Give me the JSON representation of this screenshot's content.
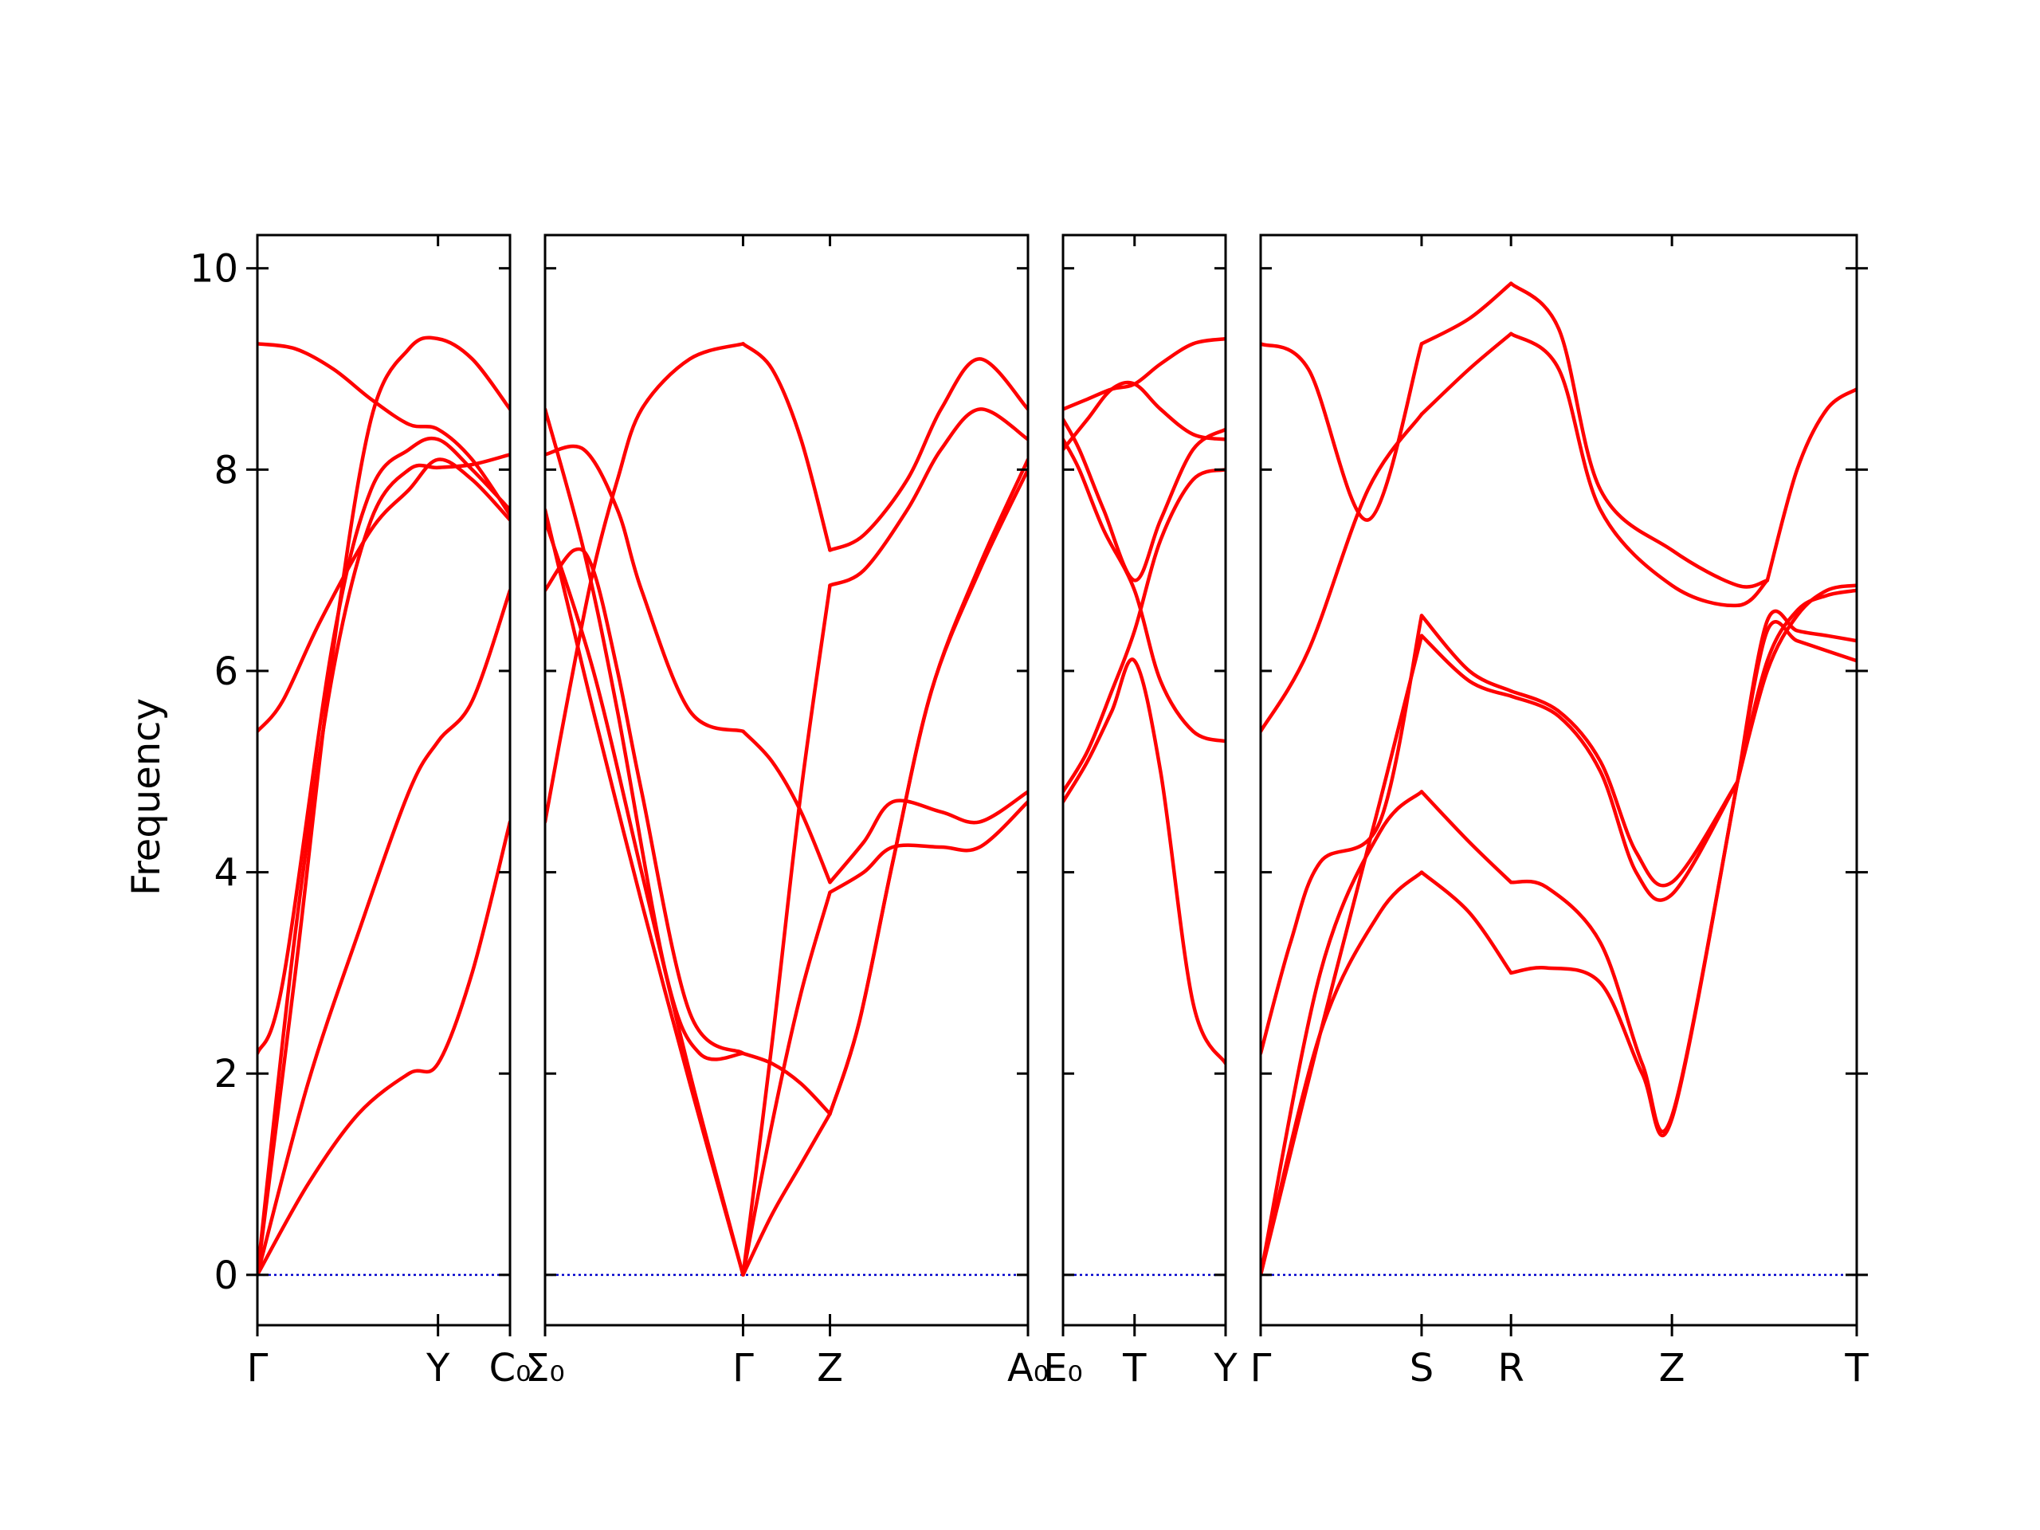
{
  "chart_data": {
    "type": "line",
    "title": "",
    "ylabel": "Frequency",
    "xlabel": "",
    "ylim": [
      -0.5,
      10.33
    ],
    "yticks": [
      0,
      2,
      4,
      6,
      8,
      10
    ],
    "grid": false,
    "legend": "none",
    "colors": {
      "bands": "#ff0000",
      "zero_line": "#0000cc",
      "axes": "#000000"
    },
    "panels": [
      {
        "id": "p1",
        "xlim": [
          0,
          1
        ],
        "ticks": [
          {
            "pos": 0,
            "label": "Γ"
          },
          {
            "pos": 0.715,
            "label": "Y"
          },
          {
            "pos": 1,
            "label": "C₀"
          }
        ],
        "bands": [
          {
            "x": [
              0,
              0.2,
              0.4,
              0.6,
              0.715,
              0.85,
              1
            ],
            "y": [
              0,
              0.9,
              1.6,
              2.0,
              2.1,
              3.0,
              4.5
            ]
          },
          {
            "x": [
              0,
              0.2,
              0.4,
              0.6,
              0.715,
              0.85,
              1
            ],
            "y": [
              0,
              1.9,
              3.4,
              4.8,
              5.3,
              5.7,
              6.8
            ]
          },
          {
            "x": [
              0,
              0.15,
              0.3,
              0.45,
              0.6,
              0.715,
              0.85,
              1
            ],
            "y": [
              0,
              3.4,
              6.0,
              7.5,
              8.0,
              8.02,
              8.05,
              8.15
            ]
          },
          {
            "x": [
              0,
              0.1,
              0.3,
              0.45,
              0.6,
              0.715,
              0.85,
              1
            ],
            "y": [
              2.2,
              2.9,
              6.3,
              7.8,
              8.2,
              8.3,
              8.0,
              7.6
            ]
          },
          {
            "x": [
              0,
              0.15,
              0.3,
              0.45,
              0.6,
              0.715,
              0.85,
              1
            ],
            "y": [
              0,
              3.0,
              6.2,
              8.5,
              9.2,
              9.3,
              9.1,
              8.6
            ]
          },
          {
            "x": [
              0,
              0.1,
              0.25,
              0.45,
              0.6,
              0.715,
              0.85,
              1
            ],
            "y": [
              5.4,
              5.7,
              6.5,
              7.4,
              7.8,
              8.1,
              7.9,
              7.5
            ]
          },
          {
            "x": [
              0,
              0.15,
              0.3,
              0.45,
              0.6,
              0.715,
              0.85,
              1
            ],
            "y": [
              9.25,
              9.2,
              9.0,
              8.7,
              8.45,
              8.4,
              8.1,
              7.55
            ]
          }
        ]
      },
      {
        "id": "p2",
        "xlim": [
          0,
          1
        ],
        "ticks": [
          {
            "pos": 0,
            "label": "Σ₀"
          },
          {
            "pos": 0.41,
            "label": "Γ"
          },
          {
            "pos": 0.59,
            "label": "Z"
          },
          {
            "pos": 1,
            "label": "A₀"
          }
        ],
        "bands": [
          {
            "x": [
              0,
              0.05,
              0.1,
              0.2,
              0.3,
              0.41
            ],
            "y": [
              7.6,
              6.6,
              5.6,
              3.7,
              1.9,
              0
            ]
          },
          {
            "x": [
              0,
              0.1,
              0.2,
              0.3,
              0.41
            ],
            "y": [
              7.5,
              6.0,
              4.0,
              2.0,
              0
            ]
          },
          {
            "x": [
              0,
              0.05,
              0.1,
              0.15,
              0.2,
              0.3,
              0.41
            ],
            "y": [
              4.5,
              5.8,
              7.0,
              7.9,
              8.6,
              9.1,
              9.25
            ]
          },
          {
            "x": [
              0,
              0.08,
              0.15,
              0.25,
              0.32,
              0.41
            ],
            "y": [
              8.6,
              7.2,
              5.6,
              3.0,
              2.2,
              2.2
            ]
          },
          {
            "x": [
              0,
              0.08,
              0.15,
              0.2,
              0.3,
              0.41
            ],
            "y": [
              8.15,
              8.2,
              7.6,
              6.8,
              5.6,
              5.4
            ]
          },
          {
            "x": [
              0,
              0.06,
              0.1,
              0.15,
              0.2,
              0.3,
              0.41
            ],
            "y": [
              6.8,
              7.2,
              7.0,
              6.0,
              4.8,
              2.6,
              2.2
            ]
          },
          {
            "x": [
              0.41,
              0.47,
              0.53,
              0.59
            ],
            "y": [
              9.25,
              9.0,
              8.3,
              7.2
            ]
          },
          {
            "x": [
              0.41,
              0.47,
              0.53,
              0.59
            ],
            "y": [
              0,
              2.3,
              4.8,
              6.85
            ]
          },
          {
            "x": [
              0.41,
              0.47,
              0.53,
              0.59
            ],
            "y": [
              0,
              1.5,
              2.8,
              3.8
            ]
          },
          {
            "x": [
              0.41,
              0.47,
              0.53,
              0.59
            ],
            "y": [
              0,
              0.6,
              1.1,
              1.6
            ]
          },
          {
            "x": [
              0.41,
              0.47,
              0.53,
              0.59
            ],
            "y": [
              2.2,
              2.1,
              1.9,
              1.6
            ]
          },
          {
            "x": [
              0.41,
              0.47,
              0.53,
              0.59
            ],
            "y": [
              5.4,
              5.1,
              4.6,
              3.9
            ]
          },
          {
            "x": [
              0.59,
              0.66,
              0.75,
              0.82,
              0.9,
              1
            ],
            "y": [
              7.2,
              7.35,
              7.9,
              8.6,
              9.1,
              8.6
            ]
          },
          {
            "x": [
              0.59,
              0.66,
              0.75,
              0.82,
              0.9,
              1
            ],
            "y": [
              6.85,
              7.0,
              7.6,
              8.2,
              8.6,
              8.3
            ]
          },
          {
            "x": [
              0.59,
              0.66,
              0.72,
              0.82,
              0.9,
              1
            ],
            "y": [
              3.9,
              4.3,
              4.7,
              4.6,
              4.5,
              4.8
            ]
          },
          {
            "x": [
              0.59,
              0.66,
              0.72,
              0.82,
              0.9,
              1
            ],
            "y": [
              3.8,
              4.0,
              4.25,
              4.25,
              4.25,
              4.7
            ]
          },
          {
            "x": [
              0.59,
              0.65,
              0.72,
              0.8,
              0.9,
              1
            ],
            "y": [
              1.6,
              2.5,
              4.1,
              5.8,
              7.0,
              8.0
            ]
          },
          {
            "x": [
              0.59,
              0.65,
              0.72,
              0.8,
              0.9,
              1
            ],
            "y": [
              1.6,
              2.5,
              4.1,
              5.8,
              7.05,
              8.1
            ]
          }
        ]
      },
      {
        "id": "p3",
        "xlim": [
          0,
          1
        ],
        "ticks": [
          {
            "pos": 0,
            "label": "E₀"
          },
          {
            "pos": 0.44,
            "label": "T"
          },
          {
            "pos": 1,
            "label": "Y"
          }
        ],
        "bands": [
          {
            "x": [
              0,
              0.15,
              0.3,
              0.44,
              0.6,
              0.8,
              1
            ],
            "y": [
              8.6,
              8.7,
              8.8,
              8.85,
              9.05,
              9.25,
              9.3
            ]
          },
          {
            "x": [
              0,
              0.15,
              0.3,
              0.44,
              0.6,
              0.8,
              1
            ],
            "y": [
              8.2,
              8.5,
              8.8,
              8.85,
              8.6,
              8.35,
              8.3
            ]
          },
          {
            "x": [
              0,
              0.1,
              0.25,
              0.44,
              0.6,
              0.8,
              1
            ],
            "y": [
              8.3,
              8.0,
              7.4,
              6.8,
              5.9,
              5.4,
              5.3
            ]
          },
          {
            "x": [
              0,
              0.1,
              0.25,
              0.44,
              0.6,
              0.8,
              1
            ],
            "y": [
              8.5,
              8.2,
              7.6,
              6.9,
              7.5,
              8.2,
              8.4
            ]
          },
          {
            "x": [
              0,
              0.15,
              0.3,
              0.44,
              0.6,
              0.8,
              1
            ],
            "y": [
              4.8,
              5.2,
              5.8,
              6.4,
              7.3,
              7.9,
              8.0
            ]
          },
          {
            "x": [
              0,
              0.15,
              0.3,
              0.44,
              0.6,
              0.8,
              1
            ],
            "y": [
              4.7,
              5.1,
              5.6,
              6.1,
              5.0,
              2.7,
              2.1
            ]
          }
        ]
      },
      {
        "id": "p4",
        "xlim": [
          0,
          1
        ],
        "ticks": [
          {
            "pos": 0,
            "label": "Γ"
          },
          {
            "pos": 0.27,
            "label": "S"
          },
          {
            "pos": 0.42,
            "label": "R"
          },
          {
            "pos": 0.69,
            "label": "Z"
          },
          {
            "pos": 1,
            "label": "T"
          }
        ],
        "bands": [
          {
            "x": [
              0,
              0.1,
              0.2,
              0.27
            ],
            "y": [
              0,
              2.4,
              3.6,
              4.0
            ]
          },
          {
            "x": [
              0,
              0.1,
              0.2,
              0.27
            ],
            "y": [
              0,
              3.0,
              4.4,
              4.8
            ]
          },
          {
            "x": [
              0,
              0.1,
              0.2,
              0.27
            ],
            "y": [
              0,
              2.4,
              4.7,
              6.35
            ]
          },
          {
            "x": [
              0,
              0.05,
              0.1,
              0.2,
              0.27
            ],
            "y": [
              2.2,
              3.3,
              4.1,
              4.5,
              6.55
            ]
          },
          {
            "x": [
              0,
              0.08,
              0.18,
              0.27
            ],
            "y": [
              5.4,
              6.2,
              7.8,
              8.55
            ]
          },
          {
            "x": [
              0,
              0.08,
              0.18,
              0.27
            ],
            "y": [
              9.25,
              9.0,
              7.5,
              9.25
            ]
          },
          {
            "x": [
              0.27,
              0.35,
              0.42
            ],
            "y": [
              9.25,
              9.5,
              9.85
            ]
          },
          {
            "x": [
              0.27,
              0.35,
              0.42
            ],
            "y": [
              8.55,
              9.0,
              9.35
            ]
          },
          {
            "x": [
              0.27,
              0.35,
              0.42
            ],
            "y": [
              6.55,
              6.0,
              5.8
            ]
          },
          {
            "x": [
              0.27,
              0.35,
              0.42
            ],
            "y": [
              6.35,
              5.9,
              5.75
            ]
          },
          {
            "x": [
              0.27,
              0.35,
              0.42
            ],
            "y": [
              4.8,
              4.3,
              3.9
            ]
          },
          {
            "x": [
              0.27,
              0.35,
              0.42
            ],
            "y": [
              4.0,
              3.6,
              3.0
            ]
          },
          {
            "x": [
              0.42,
              0.5,
              0.57,
              0.69,
              0.8,
              0.85
            ],
            "y": [
              9.85,
              9.4,
              7.8,
              7.2,
              6.85,
              6.9
            ]
          },
          {
            "x": [
              0.42,
              0.5,
              0.57,
              0.69,
              0.8,
              0.85
            ],
            "y": [
              9.35,
              9.0,
              7.6,
              6.85,
              6.65,
              6.9
            ]
          },
          {
            "x": [
              0.42,
              0.5,
              0.57,
              0.63,
              0.69,
              0.8
            ],
            "y": [
              5.8,
              5.6,
              5.1,
              4.2,
              3.9,
              4.9
            ]
          },
          {
            "x": [
              0.42,
              0.5,
              0.57,
              0.63,
              0.69,
              0.8
            ],
            "y": [
              5.75,
              5.55,
              5.0,
              4.0,
              3.78,
              4.9
            ]
          },
          {
            "x": [
              0.42,
              0.48,
              0.57,
              0.64,
              0.69,
              0.8
            ],
            "y": [
              3.9,
              3.85,
              3.3,
              2.1,
              1.58,
              4.9
            ]
          },
          {
            "x": [
              0.42,
              0.48,
              0.57,
              0.64,
              0.69,
              0.8
            ],
            "y": [
              3.0,
              3.05,
              2.9,
              2.0,
              1.55,
              4.9
            ]
          },
          {
            "x": [
              0.85,
              0.9,
              0.95,
              1
            ],
            "y": [
              6.9,
              8.0,
              8.6,
              8.8
            ]
          },
          {
            "x": [
              0.8,
              0.85,
              0.9,
              0.95,
              1
            ],
            "y": [
              4.9,
              6.4,
              6.3,
              6.2,
              6.1
            ]
          },
          {
            "x": [
              0.8,
              0.85,
              0.9,
              0.95,
              1
            ],
            "y": [
              4.9,
              6.1,
              6.6,
              6.75,
              6.8
            ]
          },
          {
            "x": [
              0.8,
              0.85,
              0.9,
              0.95,
              1
            ],
            "y": [
              4.9,
              6.0,
              6.55,
              6.8,
              6.85
            ]
          },
          {
            "x": [
              0.8,
              0.85,
              0.9,
              0.95,
              1
            ],
            "y": [
              4.9,
              6.5,
              6.4,
              6.35,
              6.3
            ]
          }
        ]
      }
    ]
  }
}
